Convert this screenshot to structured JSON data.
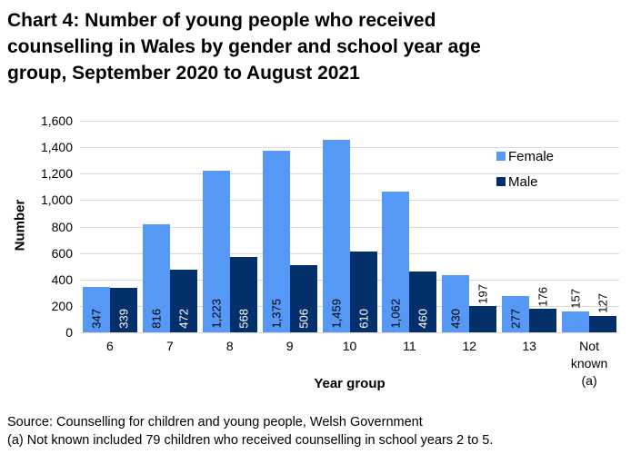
{
  "header": {
    "title_lines": [
      "Chart 4: Number of young people who received",
      "counselling in Wales by gender and school year age",
      "group, September 2020 to August 2021"
    ]
  },
  "chart_data": {
    "type": "bar",
    "title": "Chart 4: Number of young people who received counselling in Wales by gender and school year age group, September 2020 to August 2021",
    "xlabel": "Year group",
    "ylabel": "Number",
    "ylim": [
      0,
      1600
    ],
    "ytick_step": 200,
    "yticks": [
      "0",
      "200",
      "400",
      "600",
      "800",
      "1,000",
      "1,200",
      "1,400",
      "1,600"
    ],
    "grid": true,
    "legend_position": "top-right-inside",
    "legend_entries": [
      "Female",
      "Male"
    ],
    "categories": [
      "6",
      "7",
      "8",
      "9",
      "10",
      "11",
      "12",
      "13",
      "Not known (a)"
    ],
    "categories_display": [
      [
        "6"
      ],
      [
        "7"
      ],
      [
        "8"
      ],
      [
        "9"
      ],
      [
        "10"
      ],
      [
        "11"
      ],
      [
        "12"
      ],
      [
        "13"
      ],
      [
        "Not",
        "known",
        "(a)"
      ]
    ],
    "series": [
      {
        "name": "Female",
        "color": "#5598f6",
        "values": [
          347,
          816,
          1223,
          1375,
          1459,
          1062,
          430,
          277,
          157
        ],
        "labels": [
          "347",
          "816",
          "1,223",
          "1,375",
          "1,459",
          "1,062",
          "430",
          "277",
          "157"
        ]
      },
      {
        "name": "Male",
        "color": "#032f6b",
        "values": [
          339,
          472,
          568,
          506,
          610,
          460,
          197,
          176,
          127
        ],
        "labels": [
          "339",
          "472",
          "568",
          "506",
          "610",
          "460",
          "197",
          "176",
          "127"
        ]
      }
    ],
    "label_inside_threshold": 250,
    "gridline_color": "#d9d9d9"
  },
  "footer": {
    "source": "Source: Counselling for children and young people, Welsh Government",
    "note": "(a) Not known included 79 children who received counselling in school years 2 to 5."
  }
}
